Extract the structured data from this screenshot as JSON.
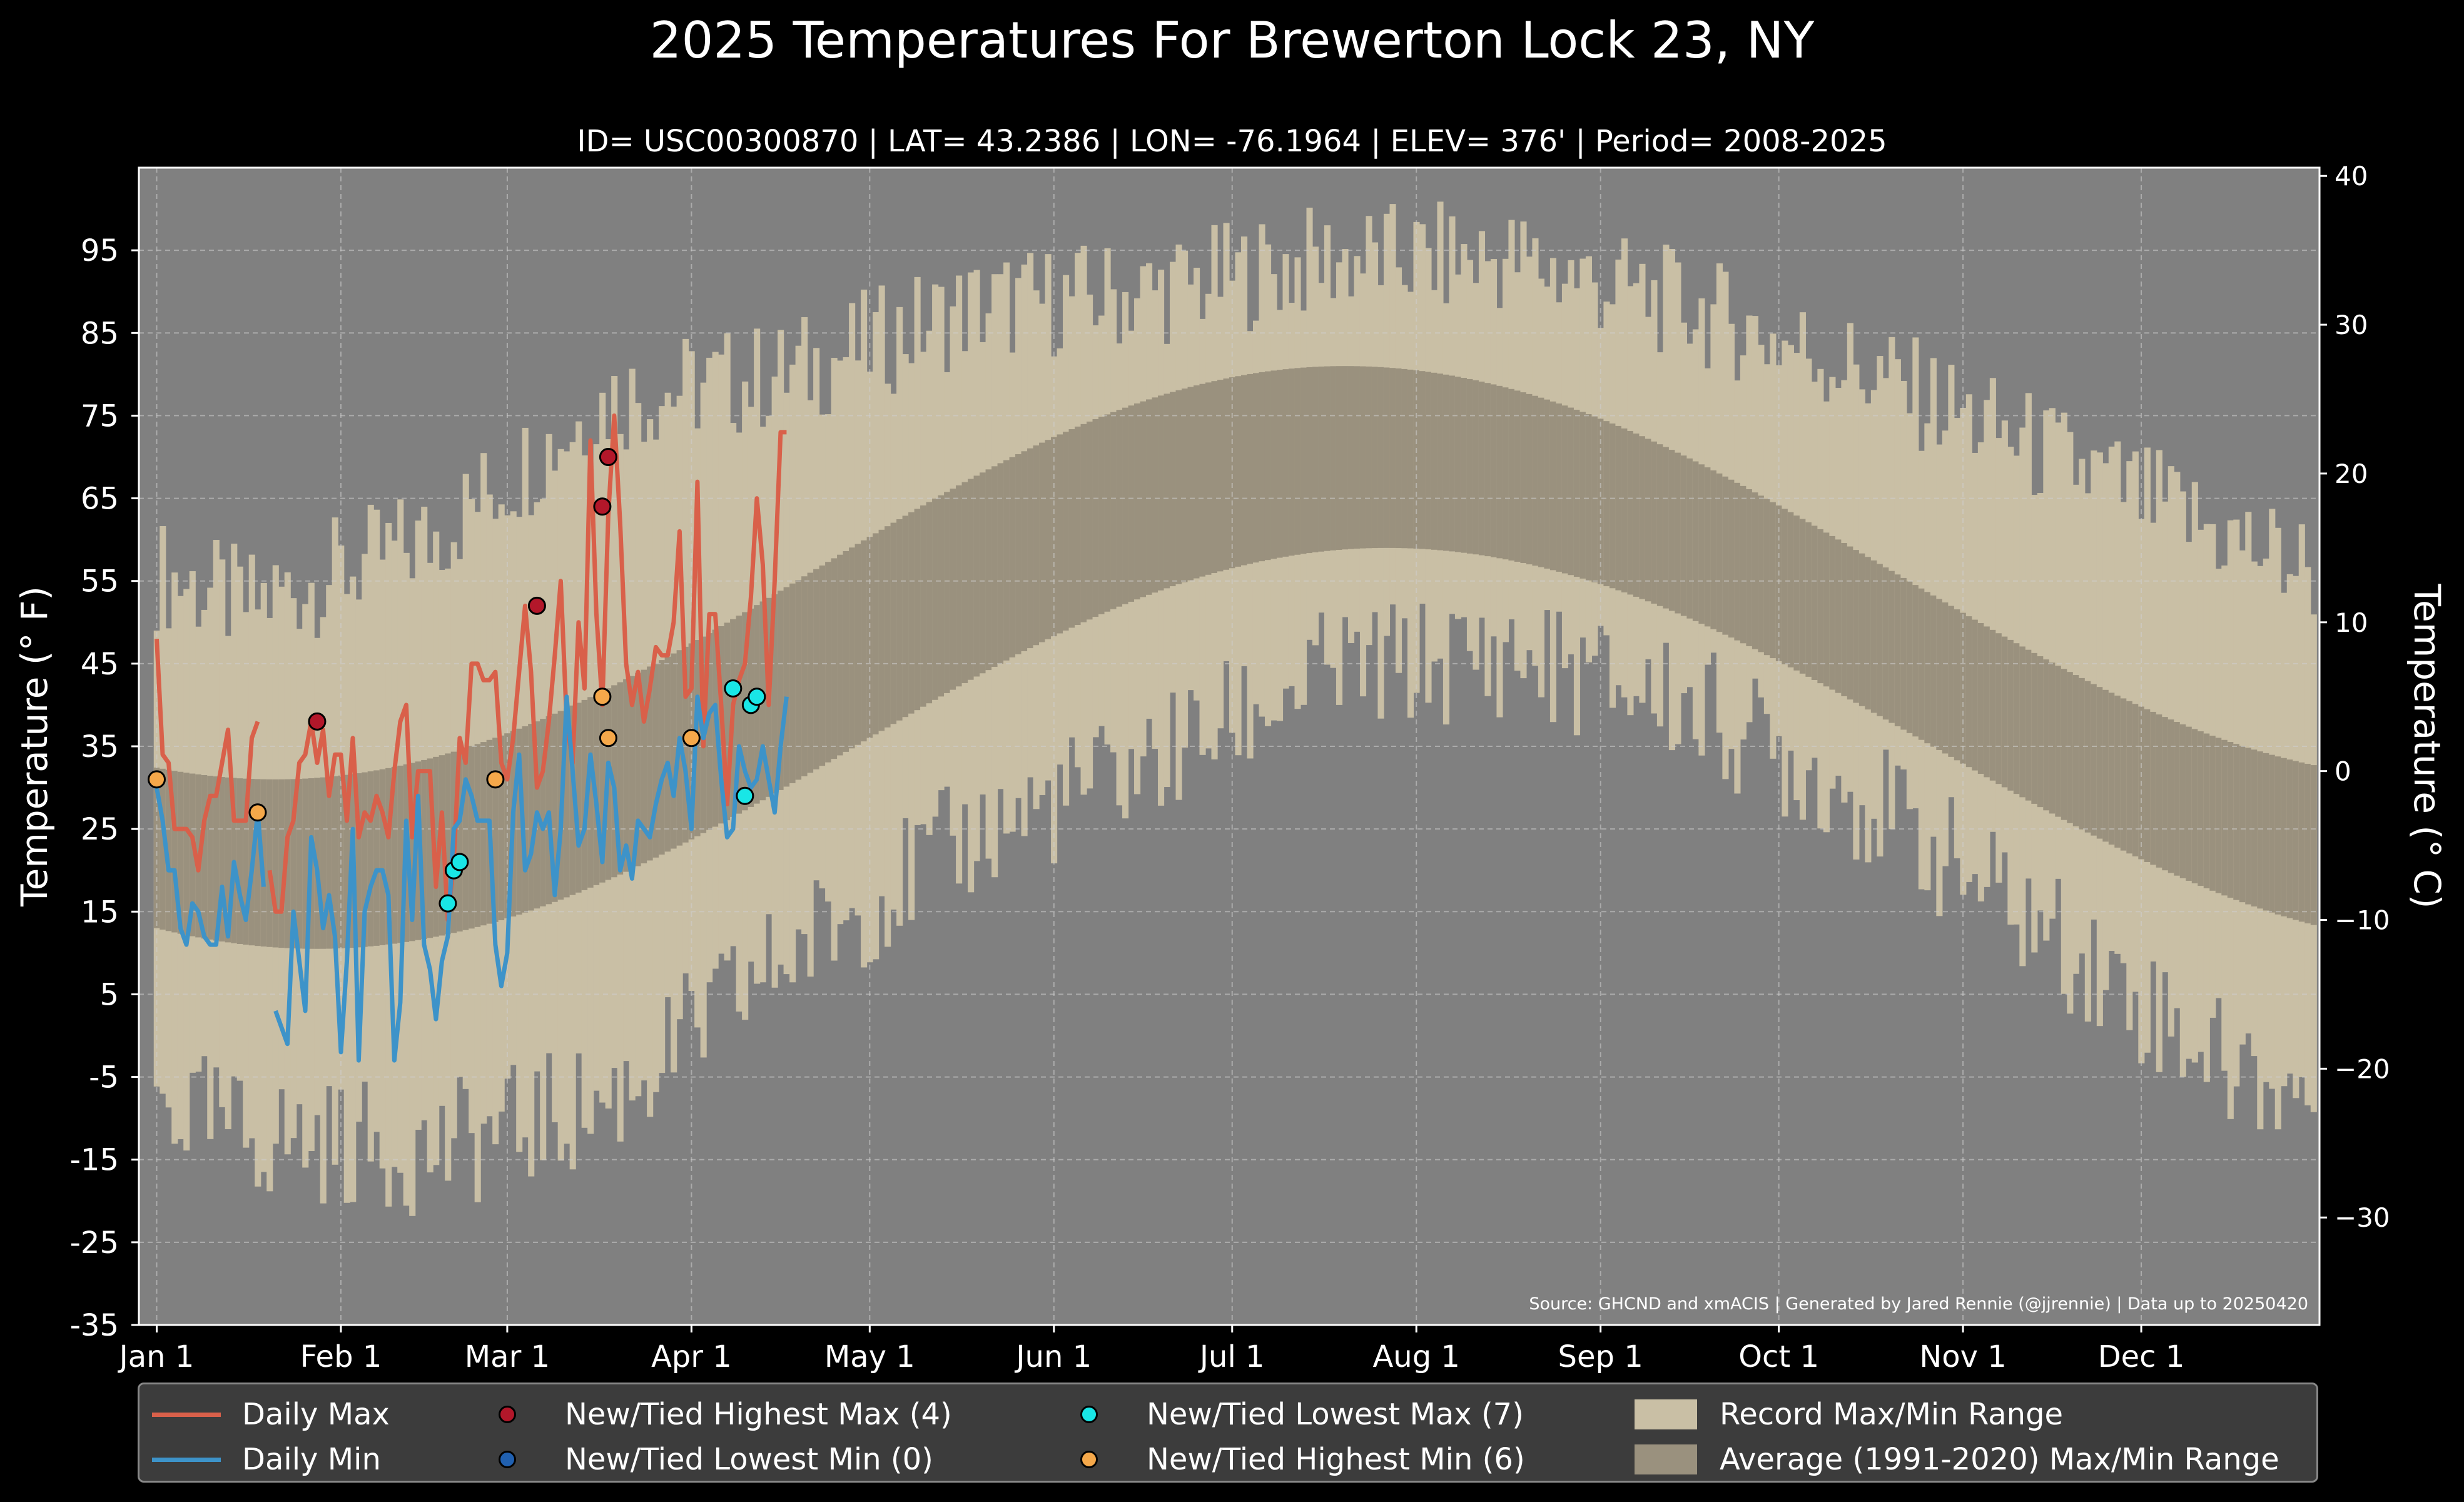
{
  "title": "2025 Temperatures For Brewerton Lock 23, NY",
  "subtitle": "ID= USC00300870 | LAT= 43.2386 | LON= -76.1964 | ELEV= 376' | Period= 2008-2025",
  "source_note": "Source: GHCND and xmACIS | Generated by Jared Rennie (@jjrennie) | Data up to 20250420",
  "colors": {
    "background": "#000000",
    "plot_bg": "#808080",
    "record_range": "#c9bfa5",
    "average_range": "#9a917e",
    "daily_max": "#d9604a",
    "daily_min": "#3d93c9",
    "highest_max_marker": "#b3172a",
    "lowest_min_marker": "#2060b0",
    "lowest_max_marker": "#19e6e6",
    "highest_min_marker": "#f5a84a"
  },
  "legend": {
    "daily_max": "Daily Max",
    "daily_min": "Daily Min",
    "highest_max": "New/Tied Highest Max (4)",
    "lowest_min": "New/Tied Lowest Min (0)",
    "lowest_max": "New/Tied Lowest Max (7)",
    "highest_min": "New/Tied Highest Min (6)",
    "record_range": "Record Max/Min Range",
    "average_range": "Average (1991-2020) Max/Min Range"
  },
  "chart_data": {
    "type": "line",
    "title": "2025 Temperatures For Brewerton Lock 23, NY",
    "ylabel": "Temperature ($^\\circ$F)",
    "ylabel_right": "Temperature ($^\\circ$C)",
    "ylim": [
      -35,
      105
    ],
    "xlim": [
      -3,
      364
    ],
    "y_ticks": [
      "95",
      "85",
      "75",
      "65",
      "55",
      "45",
      "35",
      "25",
      "15",
      "5",
      "-5",
      "-15",
      "-25",
      "-35"
    ],
    "y_tick_values": [
      95,
      85,
      75,
      65,
      55,
      45,
      35,
      25,
      15,
      5,
      -5,
      -15,
      -25,
      -35
    ],
    "y_right_ticks": [
      "40",
      "30",
      "20",
      "10",
      "0",
      "−10",
      "−20",
      "−30"
    ],
    "y_right_values": [
      40,
      30,
      20,
      10,
      0,
      -10,
      -20,
      -30
    ],
    "x_ticks": [
      "Jan 1",
      "Feb 1",
      "Mar 1",
      "Apr 1",
      "May 1",
      "Jun 1",
      "Jul 1",
      "Aug 1",
      "Sep 1",
      "Oct 1",
      "Nov 1",
      "Dec 1"
    ],
    "x_tick_days": [
      0,
      31,
      59,
      90,
      120,
      151,
      181,
      212,
      243,
      273,
      304,
      334
    ],
    "grid": true,
    "legend_position": "bottom",
    "average_range": {
      "max_curve": {
        "day_of_min": 20,
        "min": 31,
        "day_of_max": 200,
        "max": 81
      },
      "min_curve": {
        "day_of_min": 27,
        "min": 10.5,
        "day_of_max": 207,
        "max": 59
      }
    },
    "record_range": {
      "max_monthly": [
        52,
        60,
        77,
        80,
        88,
        90,
        94,
        94,
        88,
        80,
        70,
        60
      ],
      "min_monthly": [
        -12,
        -14,
        -8,
        10,
        24,
        33,
        44,
        46,
        40,
        28,
        12,
        -4
      ]
    },
    "series": [
      {
        "name": "Daily Max",
        "start_day": 0,
        "values": [
          48,
          34,
          33,
          25,
          25,
          25,
          24,
          20,
          26,
          29,
          29,
          33,
          37,
          26,
          26,
          26,
          36,
          38,
          null,
          20,
          15,
          15,
          24,
          26,
          33,
          34,
          38,
          33,
          37,
          29,
          34,
          34,
          26,
          36,
          24,
          27,
          26,
          29,
          27,
          24,
          32,
          38,
          40,
          24,
          32,
          32,
          32,
          18,
          27,
          14,
          21,
          36,
          33,
          45,
          45,
          43,
          43,
          44,
          33,
          31,
          36,
          44,
          52,
          44,
          30,
          32,
          38,
          46,
          55,
          38,
          33,
          50,
          42,
          72,
          51,
          40,
          63,
          75,
          62,
          45,
          40,
          44,
          38,
          42,
          47,
          46,
          46,
          50,
          61,
          41,
          42,
          67,
          35,
          51,
          51,
          40,
          28,
          40,
          43,
          45,
          53,
          65,
          57,
          40,
          55,
          73,
          73
        ]
      },
      {
        "name": "Daily Min",
        "start_day": 0,
        "values": [
          30,
          26,
          20,
          20,
          13,
          11,
          16,
          15,
          12,
          11,
          11,
          18,
          12,
          21,
          17,
          14,
          20,
          27,
          18,
          null,
          3,
          1,
          -1,
          15,
          9,
          3,
          24,
          20,
          13,
          17,
          12,
          -2,
          9,
          25,
          -3,
          15,
          18,
          20,
          20,
          17,
          -3,
          4,
          26,
          14,
          29,
          11,
          8,
          2,
          9,
          12,
          25,
          26,
          31,
          29,
          26,
          26,
          26,
          11,
          6,
          10,
          27,
          34,
          20,
          22,
          27,
          25,
          27,
          17,
          25,
          41,
          32,
          23,
          25,
          34,
          28,
          21,
          33,
          30,
          20,
          23,
          19,
          26,
          25,
          24,
          28,
          31,
          33,
          29,
          36,
          32,
          25,
          41,
          36,
          39,
          40,
          31,
          24,
          25,
          35,
          32,
          30,
          31,
          35,
          31,
          27,
          35,
          41
        ]
      }
    ],
    "markers": {
      "highest_max": [
        {
          "day": 27,
          "value": 38
        },
        {
          "day": 64,
          "value": 52
        },
        {
          "day": 75,
          "value": 64
        },
        {
          "day": 76,
          "value": 70
        }
      ],
      "lowest_min": [],
      "lowest_max": [
        {
          "day": 49,
          "value": 16
        },
        {
          "day": 50,
          "value": 20
        },
        {
          "day": 51,
          "value": 21
        },
        {
          "day": 97,
          "value": 42
        },
        {
          "day": 99,
          "value": 29
        },
        {
          "day": 100,
          "value": 40
        },
        {
          "day": 101,
          "value": 41
        }
      ],
      "highest_min": [
        {
          "day": 0,
          "value": 31
        },
        {
          "day": 17,
          "value": 27
        },
        {
          "day": 57,
          "value": 31
        },
        {
          "day": 75,
          "value": 41
        },
        {
          "day": 76,
          "value": 36
        },
        {
          "day": 90,
          "value": 36
        }
      ]
    }
  }
}
